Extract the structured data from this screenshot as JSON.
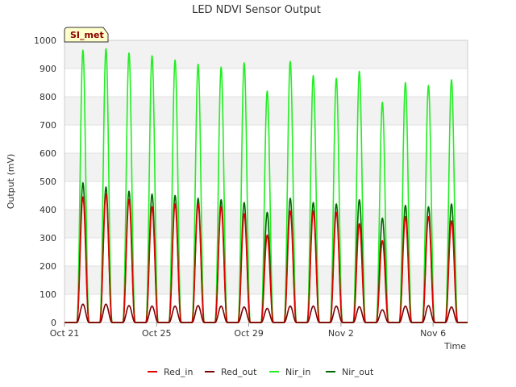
{
  "chart_data": {
    "type": "line",
    "title": "LED NDVI Sensor Output",
    "xlabel": "Time",
    "ylabel": "Output (mV)",
    "badge": "SI_met",
    "ylim": [
      0,
      1000
    ],
    "yticks": [
      0,
      100,
      200,
      300,
      400,
      500,
      600,
      700,
      800,
      900,
      1000
    ],
    "xlim_days": [
      0,
      17.5
    ],
    "xticks": [
      {
        "label": "Oct 21",
        "day": 0
      },
      {
        "label": "Oct 25",
        "day": 4
      },
      {
        "label": "Oct 29",
        "day": 8
      },
      {
        "label": "Nov 2",
        "day": 12
      },
      {
        "label": "Nov 6",
        "day": 16
      }
    ],
    "grid": true,
    "legend_position": "bottom",
    "peak_days": [
      0.8,
      1.8,
      2.8,
      3.8,
      4.8,
      5.8,
      6.8,
      7.8,
      8.8,
      9.8,
      10.8,
      11.8,
      12.8,
      13.8,
      14.8,
      15.8,
      16.8
    ],
    "series": [
      {
        "name": "Red_in",
        "color": "#dd0000",
        "daily_peaks": [
          445,
          455,
          435,
          410,
          420,
          420,
          410,
          385,
          310,
          395,
          395,
          390,
          350,
          290,
          375,
          375,
          360
        ]
      },
      {
        "name": "Red_out",
        "color": "#7a0000",
        "daily_peaks": [
          65,
          65,
          60,
          58,
          58,
          60,
          58,
          55,
          50,
          58,
          58,
          58,
          56,
          45,
          58,
          60,
          55
        ]
      },
      {
        "name": "Nir_in",
        "color": "#22ee22",
        "daily_peaks": [
          965,
          970,
          955,
          945,
          930,
          915,
          905,
          920,
          820,
          925,
          875,
          865,
          890,
          780,
          850,
          840,
          860
        ]
      },
      {
        "name": "Nir_out",
        "color": "#006400",
        "daily_peaks": [
          495,
          480,
          465,
          455,
          450,
          440,
          435,
          425,
          390,
          440,
          425,
          420,
          435,
          370,
          415,
          410,
          420
        ]
      }
    ]
  }
}
